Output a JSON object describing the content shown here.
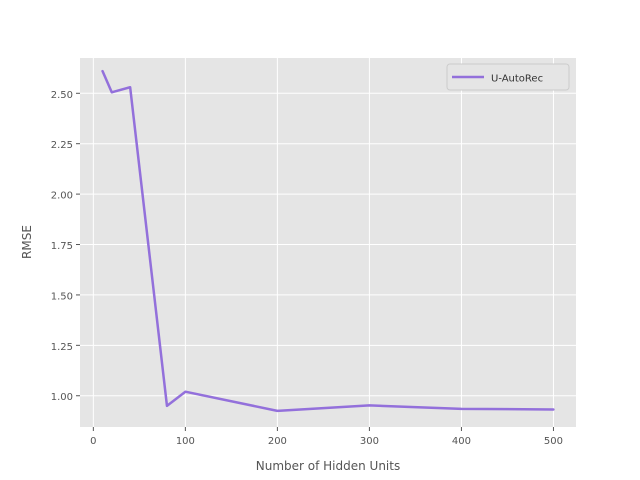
{
  "chart_data": {
    "type": "line",
    "title": "",
    "xlabel": "Number of Hidden Units",
    "ylabel": "RMSE",
    "xlim": [
      -14.5,
      524.5
    ],
    "ylim": [
      0.845,
      2.675
    ],
    "xticks": [
      0,
      100,
      200,
      300,
      400,
      500
    ],
    "xtick_labels": [
      "0",
      "100",
      "200",
      "300",
      "400",
      "500"
    ],
    "yticks": [
      1.0,
      1.25,
      1.5,
      1.75,
      2.0,
      2.25,
      2.5
    ],
    "ytick_labels": [
      "1.00",
      "1.25",
      "1.50",
      "1.75",
      "2.00",
      "2.25",
      "2.50"
    ],
    "grid": true,
    "legend_position": "top-right",
    "series": [
      {
        "name": "U-AutoRec",
        "color": "#9370DB",
        "x": [
          10,
          20,
          40,
          80,
          100,
          200,
          300,
          400,
          500
        ],
        "y": [
          2.61,
          2.505,
          2.53,
          0.95,
          1.02,
          0.925,
          0.952,
          0.935,
          0.932
        ]
      }
    ],
    "style": {
      "plot_background": "#E5E5E5",
      "grid_color": "#FFFFFF",
      "text_color": "#555555"
    }
  }
}
